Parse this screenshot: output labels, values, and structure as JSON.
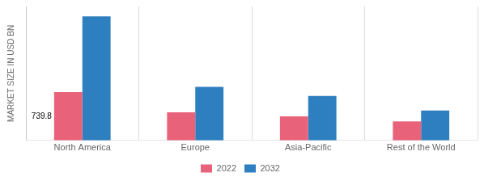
{
  "chart_data": {
    "type": "bar",
    "categories": [
      "North America",
      "Europe",
      "Asia-Pacific",
      "Rest of the World"
    ],
    "series": [
      {
        "name": "2022",
        "color": "#e8627a",
        "values": [
          739.8,
          430.0,
          370.0,
          290.0
        ]
      },
      {
        "name": "2032",
        "color": "#2e7fbf",
        "values": [
          1900.0,
          820.0,
          680.0,
          460.0
        ]
      }
    ],
    "ylabel": "MARKET SIZE IN USD BN",
    "ylim": [
      0,
      2052
    ],
    "tick_labels": "x",
    "grid": "x",
    "legend": "bottom",
    "annotations": [
      {
        "text": "739.8",
        "category": "North America",
        "series": "2022"
      }
    ]
  }
}
